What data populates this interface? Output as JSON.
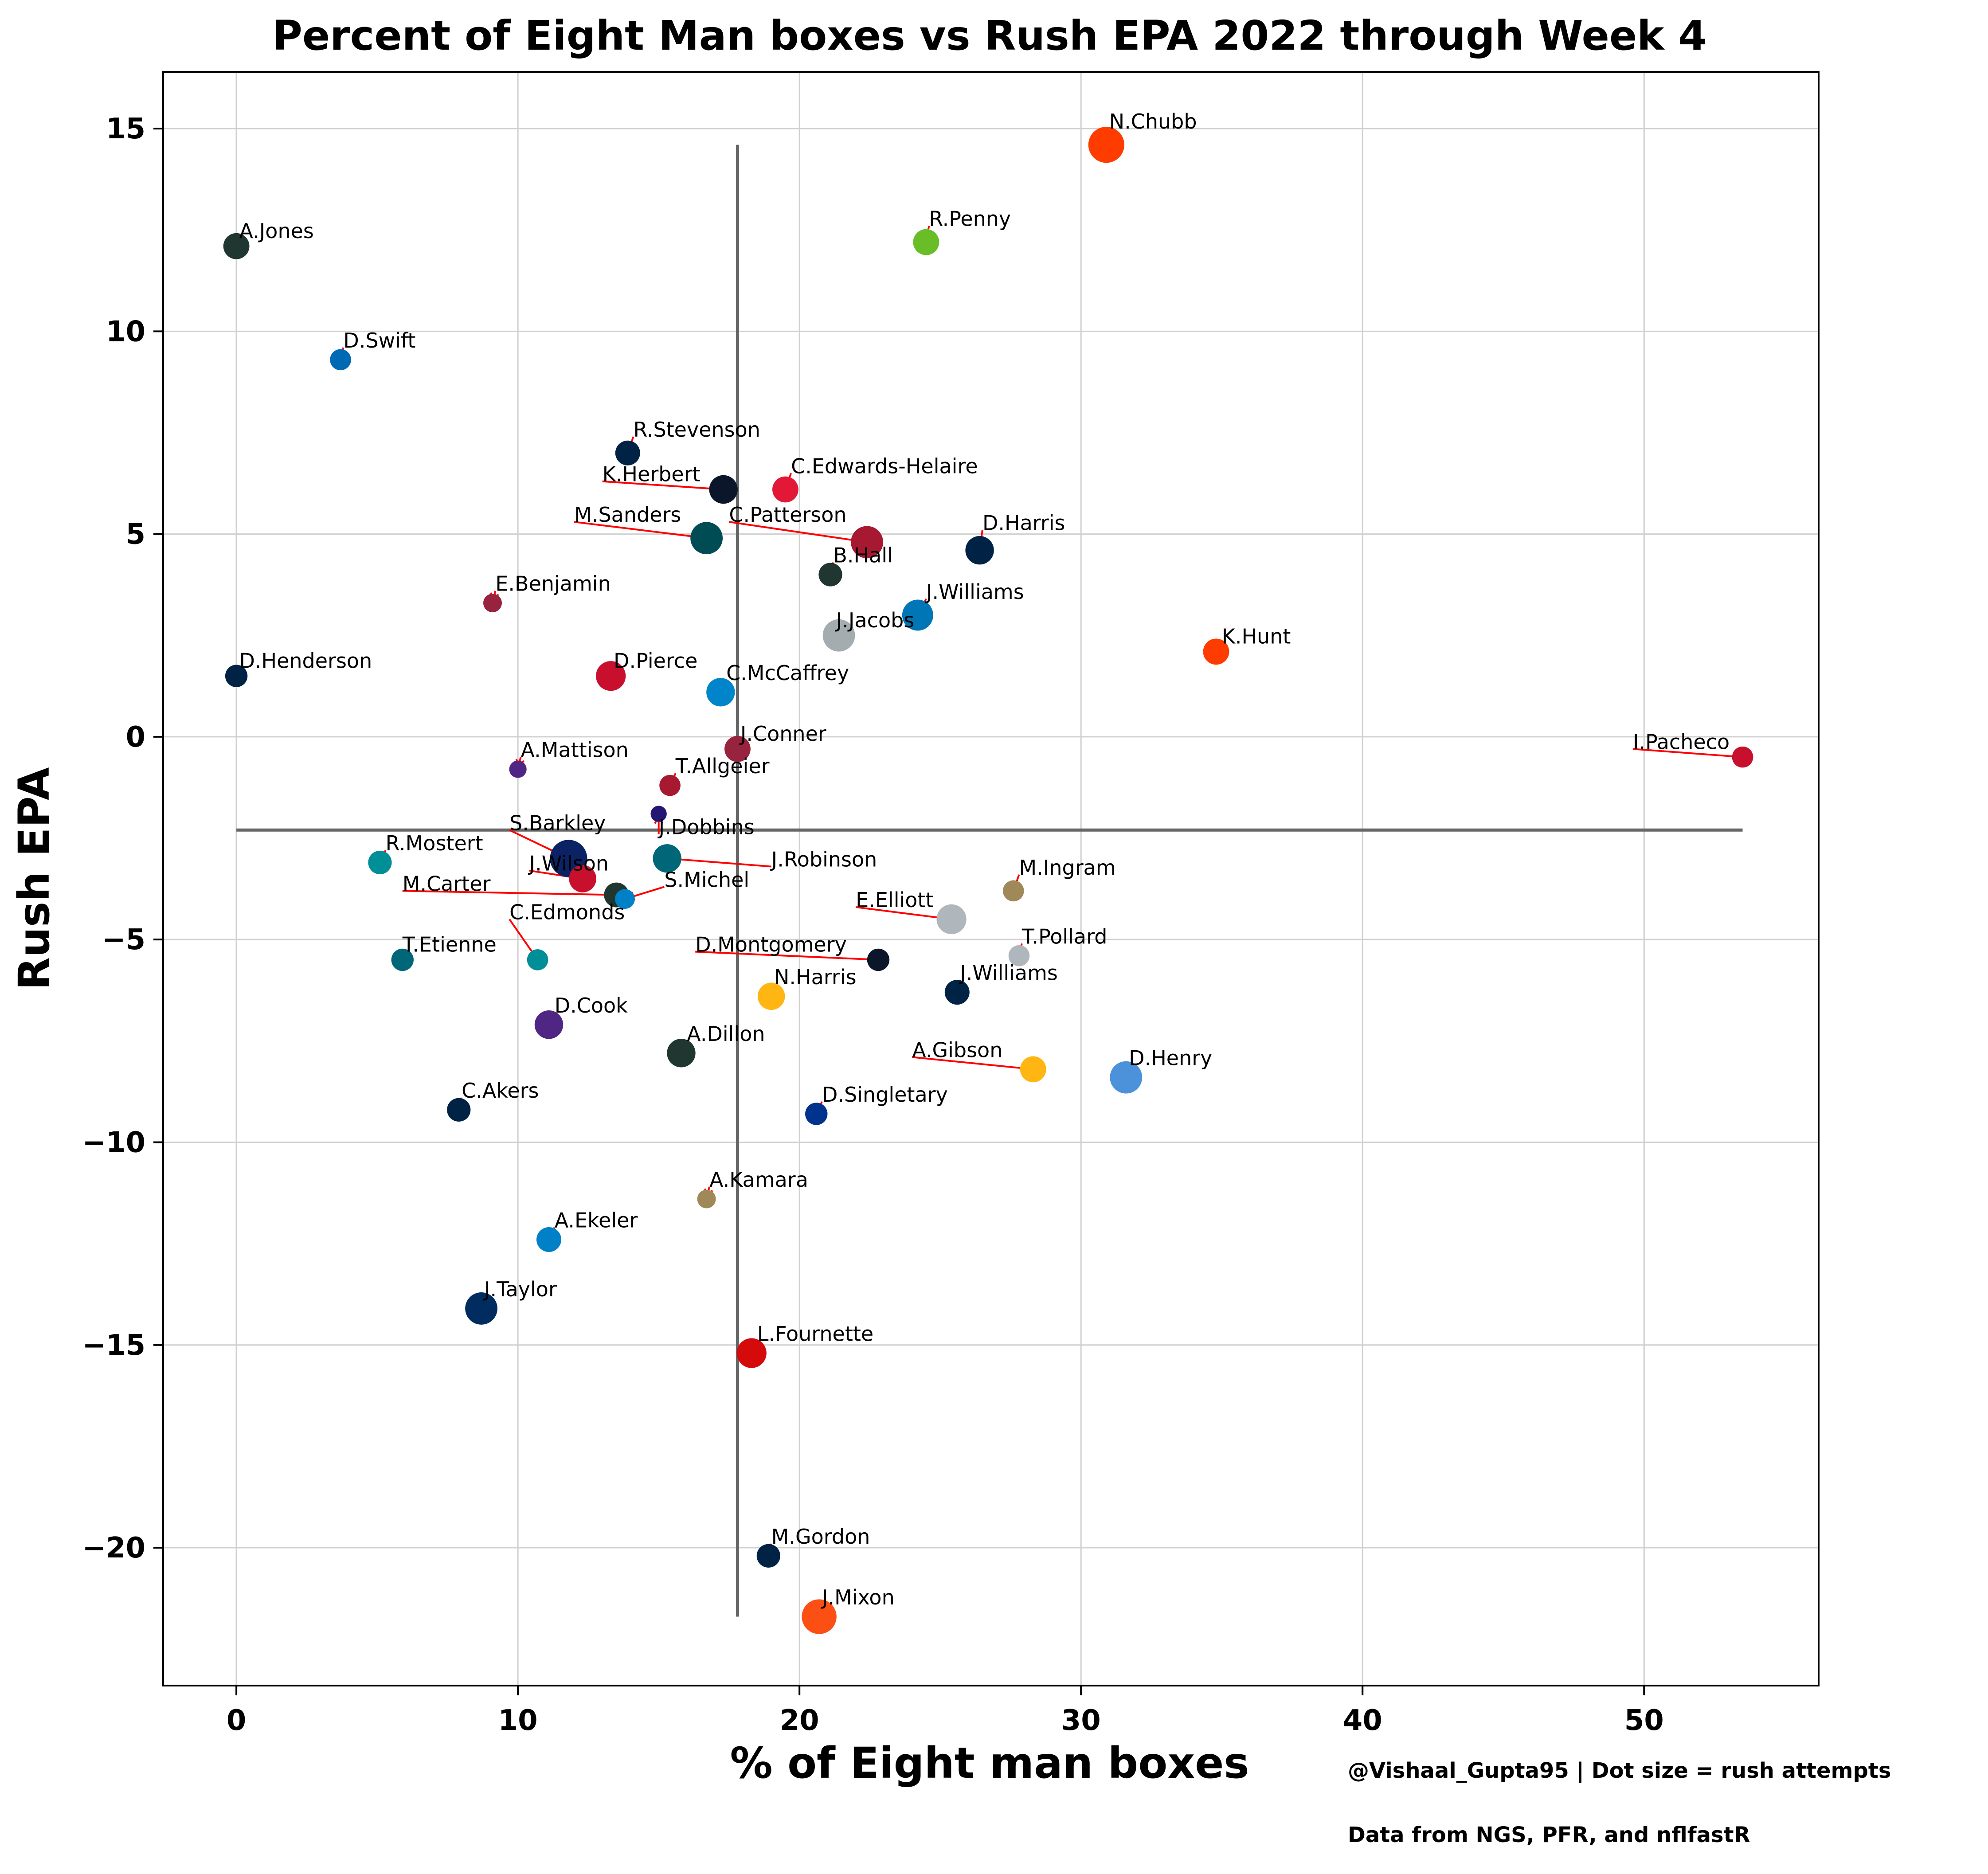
{
  "chart_data": {
    "type": "scatter",
    "title": "Percent of Eight Man boxes vs Rush EPA 2022 through Week 4",
    "xlabel": "% of Eight man boxes",
    "ylabel": "Rush EPA",
    "xlim": [
      -2.6,
      56.2
    ],
    "ylim": [
      -23.4,
      16.4
    ],
    "x_ticks": [
      0,
      10,
      20,
      30,
      40,
      50
    ],
    "y_ticks": [
      -20,
      -15,
      -10,
      -5,
      0,
      5,
      10,
      15
    ],
    "grid": true,
    "reference_lines": {
      "x": 17.8,
      "y": -2.3
    },
    "footer": [
      "@Vishaal_Gupta95 | Dot size = rush attempts",
      "Data from NGS, PFR, and nflfastR"
    ],
    "points": [
      {
        "name": "N.Chubb",
        "x": 30.9,
        "y": 14.6,
        "size": 1.45,
        "color": "#FF3C00",
        "lx": 31.0,
        "ly": 15.0
      },
      {
        "name": "R.Penny",
        "x": 24.5,
        "y": 12.2,
        "size": 1.05,
        "color": "#69BE28",
        "lx": 24.6,
        "ly": 12.6
      },
      {
        "name": "A.Jones",
        "x": 0.0,
        "y": 12.1,
        "size": 1.05,
        "color": "#203731",
        "lx": 0.1,
        "ly": 12.3
      },
      {
        "name": "D.Swift",
        "x": 3.7,
        "y": 9.3,
        "size": 0.85,
        "color": "#0069B4",
        "lx": 3.8,
        "ly": 9.6
      },
      {
        "name": "R.Stevenson",
        "x": 13.9,
        "y": 7.0,
        "size": 1.0,
        "color": "#002244",
        "lx": 14.1,
        "ly": 7.4
      },
      {
        "name": "K.Herbert",
        "x": 17.3,
        "y": 6.1,
        "size": 1.15,
        "color": "#0B162A",
        "lx": 13.0,
        "ly": 6.3
      },
      {
        "name": "C.Edwards-Helaire",
        "x": 19.5,
        "y": 6.1,
        "size": 1.05,
        "color": "#E31837",
        "lx": 19.7,
        "ly": 6.5
      },
      {
        "name": "M.Sanders",
        "x": 16.7,
        "y": 4.9,
        "size": 1.3,
        "color": "#004C54",
        "lx": 12.0,
        "ly": 5.3
      },
      {
        "name": "C.Patterson",
        "x": 22.4,
        "y": 4.8,
        "size": 1.3,
        "color": "#A71930",
        "lx": 17.5,
        "ly": 5.3
      },
      {
        "name": "D.Harris",
        "x": 26.4,
        "y": 4.6,
        "size": 1.15,
        "color": "#002244",
        "lx": 26.5,
        "ly": 5.1
      },
      {
        "name": "B.Hall",
        "x": 21.1,
        "y": 4.0,
        "size": 0.95,
        "color": "#203731",
        "lx": 21.2,
        "ly": 4.3
      },
      {
        "name": "E.Benjamin",
        "x": 9.1,
        "y": 3.3,
        "size": 0.75,
        "color": "#97233F",
        "lx": 9.2,
        "ly": 3.6
      },
      {
        "name": "J.Williams",
        "x": 24.2,
        "y": 3.0,
        "size": 1.25,
        "color": "#0076B6",
        "lx": 24.5,
        "ly": 3.4
      },
      {
        "name": "J.Jacobs",
        "x": 21.4,
        "y": 2.5,
        "size": 1.3,
        "color": "#A5ACAF",
        "lx": 21.3,
        "ly": 2.7
      },
      {
        "name": "K.Hunt",
        "x": 34.8,
        "y": 2.1,
        "size": 1.05,
        "color": "#FF3C00",
        "lx": 35.0,
        "ly": 2.3
      },
      {
        "name": "D.Henderson",
        "x": 0.0,
        "y": 1.5,
        "size": 0.9,
        "color": "#002244",
        "lx": 0.1,
        "ly": 1.7
      },
      {
        "name": "D.Pierce",
        "x": 13.3,
        "y": 1.5,
        "size": 1.2,
        "color": "#C8102E",
        "lx": 13.4,
        "ly": 1.7
      },
      {
        "name": "C.McCaffrey",
        "x": 17.2,
        "y": 1.1,
        "size": 1.15,
        "color": "#0085CA",
        "lx": 17.4,
        "ly": 1.4
      },
      {
        "name": "J.Conner",
        "x": 17.8,
        "y": -0.3,
        "size": 1.05,
        "color": "#97233F",
        "lx": 17.9,
        "ly": -0.1
      },
      {
        "name": "I.Pacheco",
        "x": 53.5,
        "y": -0.5,
        "size": 0.85,
        "color": "#C8102E",
        "lx": 49.6,
        "ly": -0.3
      },
      {
        "name": "A.Mattison",
        "x": 10.0,
        "y": -0.8,
        "size": 0.7,
        "color": "#4F2683",
        "lx": 10.1,
        "ly": -0.5
      },
      {
        "name": "T.Allgeier",
        "x": 15.4,
        "y": -1.2,
        "size": 0.85,
        "color": "#A71930",
        "lx": 15.6,
        "ly": -0.9
      },
      {
        "name": "J.Dobbins",
        "x": 15.0,
        "y": -1.9,
        "size": 0.65,
        "color": "#241773",
        "lx": 15.0,
        "ly": -2.4
      },
      {
        "name": "S.Barkley",
        "x": 11.8,
        "y": -3.0,
        "size": 1.5,
        "color": "#0B2265",
        "lx": 9.7,
        "ly": -2.3
      },
      {
        "name": "R.Mostert",
        "x": 5.1,
        "y": -3.1,
        "size": 0.95,
        "color": "#008E97",
        "lx": 5.3,
        "ly": -2.8
      },
      {
        "name": "J.Robinson",
        "x": 15.3,
        "y": -3.0,
        "size": 1.15,
        "color": "#006778",
        "lx": 19.0,
        "ly": -3.2
      },
      {
        "name": "J.Wilson",
        "x": 12.3,
        "y": -3.5,
        "size": 1.1,
        "color": "#C8102E",
        "lx": 10.4,
        "ly": -3.3
      },
      {
        "name": "M.Carter",
        "x": 13.5,
        "y": -3.9,
        "size": 1.0,
        "color": "#203731",
        "lx": 5.9,
        "ly": -3.8
      },
      {
        "name": "S.Michel",
        "x": 13.8,
        "y": -4.0,
        "size": 0.8,
        "color": "#0080C6",
        "lx": 15.2,
        "ly": -3.7
      },
      {
        "name": "M.Ingram",
        "x": 27.6,
        "y": -3.8,
        "size": 0.85,
        "color": "#9F8958",
        "lx": 27.8,
        "ly": -3.4
      },
      {
        "name": "E.Elliott",
        "x": 25.4,
        "y": -4.5,
        "size": 1.2,
        "color": "#B0B7BC",
        "lx": 22.0,
        "ly": -4.2
      },
      {
        "name": "C.Edmonds",
        "x": 10.7,
        "y": -5.5,
        "size": 0.85,
        "color": "#008E97",
        "lx": 9.7,
        "ly": -4.5
      },
      {
        "name": "T.Etienne",
        "x": 5.9,
        "y": -5.5,
        "size": 0.9,
        "color": "#006778",
        "lx": 5.9,
        "ly": -5.3
      },
      {
        "name": "T.Pollard",
        "x": 27.8,
        "y": -5.4,
        "size": 0.85,
        "color": "#B0B7BC",
        "lx": 27.9,
        "ly": -5.1
      },
      {
        "name": "D.Montgomery",
        "x": 22.8,
        "y": -5.5,
        "size": 0.9,
        "color": "#0B162A",
        "lx": 16.3,
        "ly": -5.3
      },
      {
        "name": "J.Williams",
        "x": 25.6,
        "y": -6.3,
        "size": 1.0,
        "color": "#002244",
        "lx": 25.7,
        "ly": -6.0
      },
      {
        "name": "N.Harris",
        "x": 19.0,
        "y": -6.4,
        "size": 1.1,
        "color": "#FFB612",
        "lx": 19.1,
        "ly": -6.1
      },
      {
        "name": "D.Cook",
        "x": 11.1,
        "y": -7.1,
        "size": 1.15,
        "color": "#4F2683",
        "lx": 11.3,
        "ly": -6.8
      },
      {
        "name": "A.Dillon",
        "x": 15.8,
        "y": -7.8,
        "size": 1.15,
        "color": "#203731",
        "lx": 16.0,
        "ly": -7.5
      },
      {
        "name": "A.Gibson",
        "x": 28.3,
        "y": -8.2,
        "size": 1.05,
        "color": "#FFB612",
        "lx": 24.0,
        "ly": -7.9
      },
      {
        "name": "D.Henry",
        "x": 31.6,
        "y": -8.4,
        "size": 1.3,
        "color": "#4B92DB",
        "lx": 31.7,
        "ly": -8.1
      },
      {
        "name": "C.Akers",
        "x": 7.9,
        "y": -9.2,
        "size": 0.95,
        "color": "#002244",
        "lx": 8.0,
        "ly": -8.9
      },
      {
        "name": "D.Singletary",
        "x": 20.6,
        "y": -9.3,
        "size": 0.9,
        "color": "#00338D",
        "lx": 20.8,
        "ly": -9.0
      },
      {
        "name": "A.Kamara",
        "x": 16.7,
        "y": -11.4,
        "size": 0.75,
        "color": "#9F8958",
        "lx": 16.8,
        "ly": -11.1
      },
      {
        "name": "A.Ekeler",
        "x": 11.1,
        "y": -12.4,
        "size": 1.0,
        "color": "#0080C6",
        "lx": 11.3,
        "ly": -12.1
      },
      {
        "name": "J.Taylor",
        "x": 8.7,
        "y": -14.1,
        "size": 1.3,
        "color": "#002C5F",
        "lx": 8.8,
        "ly": -13.8
      },
      {
        "name": "L.Fournette",
        "x": 18.3,
        "y": -15.2,
        "size": 1.2,
        "color": "#D50A0A",
        "lx": 18.5,
        "ly": -14.9
      },
      {
        "name": "M.Gordon",
        "x": 18.9,
        "y": -20.2,
        "size": 0.95,
        "color": "#002244",
        "lx": 19.0,
        "ly": -19.9
      },
      {
        "name": "J.Mixon",
        "x": 20.7,
        "y": -21.7,
        "size": 1.4,
        "color": "#FB4F14",
        "lx": 20.8,
        "ly": -21.4
      }
    ]
  }
}
